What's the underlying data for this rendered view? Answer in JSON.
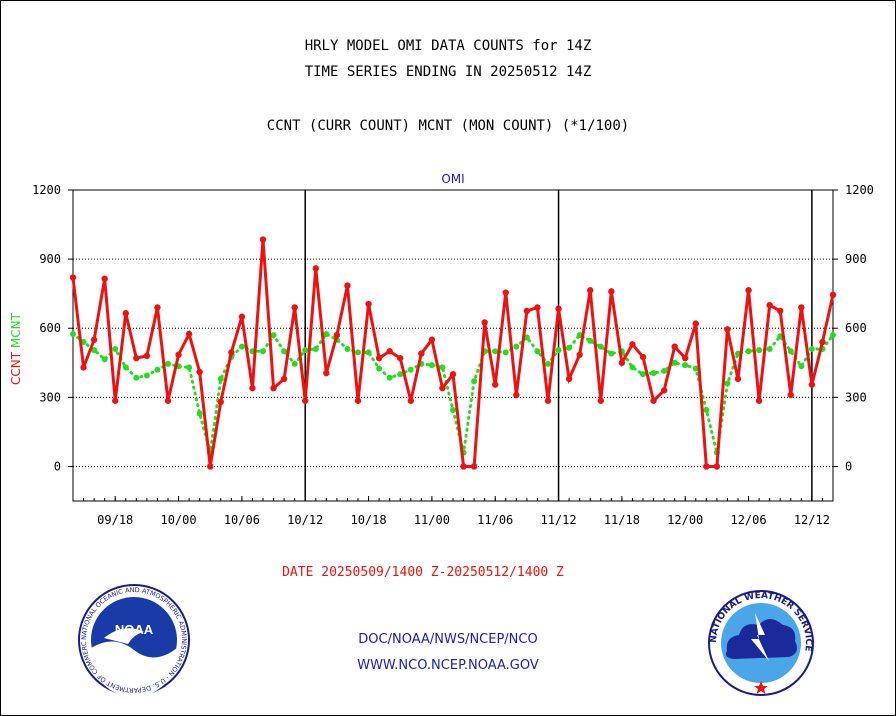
{
  "header": {
    "line1": "HRLY MODEL OMI DATA COUNTS for 14Z",
    "line2": "TIME SERIES ENDING IN 20250512 14Z",
    "line3": "CCNT (CURR COUNT) MCNT (MON COUNT) (*1/100)"
  },
  "footer": {
    "date_range": "DATE 20250509/1400 Z-20250512/1400 Z",
    "link1": "DOC/NOAA/NWS/NCEP/NCO",
    "link2": "WWW.NCO.NCEP.NOAA.GOV",
    "noaa_logo_text": "NOAA",
    "noaa_ring_text": "NATIONAL OCEANIC AND ATMOSPHERIC ADMINISTRATION · U.S. DEPARTMENT OF COMMERCE",
    "nws_ring_text": "NATIONAL WEATHER SERVICE"
  },
  "colors": {
    "ccnt": "#ee1111",
    "mcnt": "#22dd22",
    "axis_title": "#1a1ab8",
    "date_range": "#ee1111",
    "links": "#1a1ab8"
  },
  "chart_data": {
    "type": "line",
    "title": "OMI",
    "ylabel_series": [
      "CCNT",
      "MCNT"
    ],
    "ylim": [
      -150,
      1200
    ],
    "yticks": [
      0,
      300,
      600,
      900,
      1200
    ],
    "y_gridlines": [
      0,
      300,
      600,
      900
    ],
    "x_tick_labels": [
      "09/18",
      "10/00",
      "10/06",
      "10/12",
      "10/18",
      "11/00",
      "11/06",
      "11/12",
      "11/18",
      "12/00",
      "12/06",
      "12/12"
    ],
    "x_tick_indices": [
      4,
      10,
      16,
      22,
      28,
      34,
      40,
      46,
      52,
      58,
      64,
      70
    ],
    "day_boundaries": [
      22,
      46,
      70
    ],
    "x_range": [
      0,
      72
    ],
    "series": [
      {
        "name": "CCNT",
        "values": [
          820,
          430,
          550,
          815,
          285,
          665,
          470,
          480,
          690,
          285,
          485,
          575,
          410,
          0,
          280,
          495,
          650,
          340,
          985,
          340,
          380,
          690,
          285,
          860,
          405,
          570,
          785,
          285,
          705,
          470,
          500,
          470,
          285,
          490,
          550,
          340,
          400,
          0,
          0,
          625,
          355,
          755,
          310,
          675,
          690,
          285,
          685,
          380,
          485,
          765,
          285,
          760,
          450,
          530,
          475,
          285,
          330,
          520,
          470,
          620,
          0,
          0,
          595,
          380,
          765,
          285,
          700,
          675,
          310,
          690,
          355,
          540,
          745
        ]
      },
      {
        "name": "MCNT",
        "values": [
          575,
          540,
          505,
          465,
          510,
          430,
          385,
          395,
          420,
          445,
          435,
          430,
          230,
          60,
          380,
          475,
          520,
          500,
          500,
          570,
          500,
          445,
          505,
          510,
          575,
          550,
          510,
          495,
          495,
          425,
          385,
          400,
          420,
          445,
          440,
          430,
          245,
          60,
          370,
          500,
          500,
          495,
          520,
          560,
          500,
          445,
          505,
          515,
          570,
          545,
          520,
          490,
          500,
          430,
          400,
          405,
          415,
          450,
          440,
          425,
          245,
          60,
          360,
          490,
          500,
          505,
          510,
          565,
          500,
          435,
          510,
          510,
          570
        ]
      }
    ]
  }
}
